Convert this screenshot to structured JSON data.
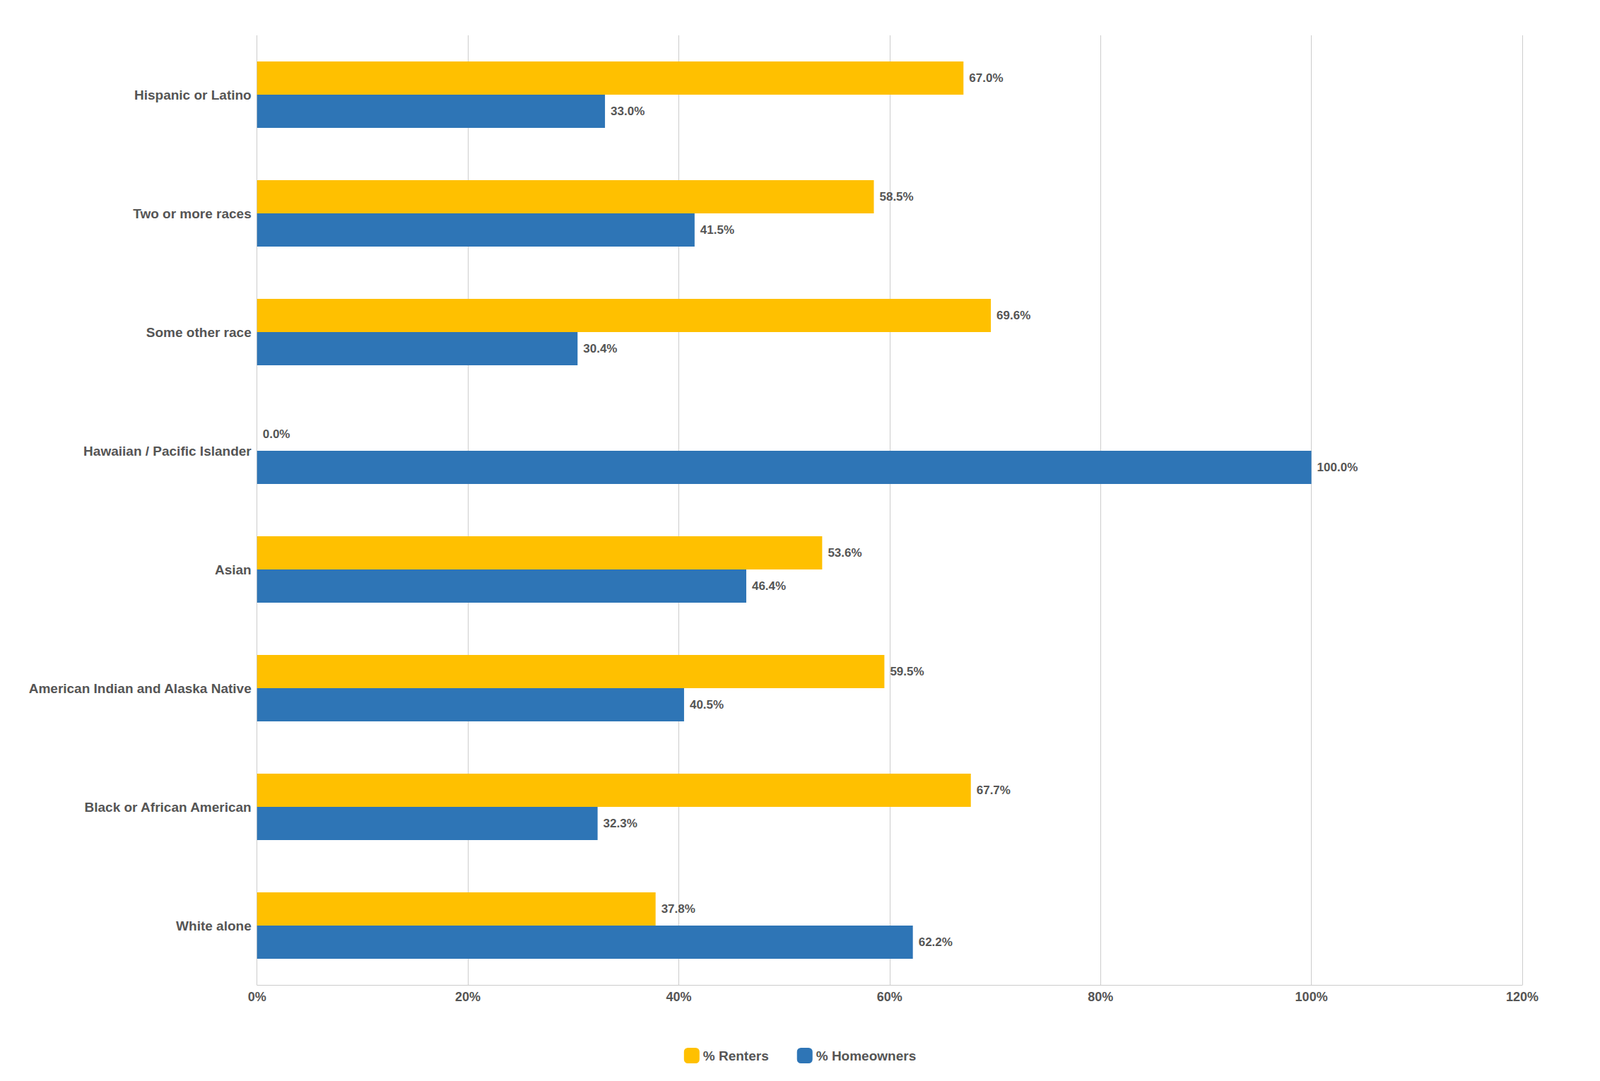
{
  "chart_data": {
    "type": "bar",
    "orientation": "horizontal",
    "categories": [
      "White alone",
      "Black or African American",
      "American Indian and Alaska Native",
      "Asian",
      "Hawaiian / Pacific Islander",
      "Some other race",
      "Two or more races",
      "Hispanic or Latino"
    ],
    "series": [
      {
        "name": "% Renters",
        "color": "#FFC000",
        "values": [
          37.8,
          67.7,
          59.5,
          53.6,
          0.0,
          69.6,
          58.5,
          67.0
        ],
        "value_labels": [
          "37.8%",
          "67.7%",
          "59.5%",
          "53.6%",
          "0.0%",
          "69.6%",
          "58.5%",
          "67.0%"
        ]
      },
      {
        "name": "% Homeowners",
        "color": "#2E75B6",
        "values": [
          62.2,
          32.3,
          40.5,
          46.4,
          100.0,
          30.4,
          41.5,
          33.0
        ],
        "value_labels": [
          "62.2%",
          "32.3%",
          "40.5%",
          "46.4%",
          "100.0%",
          "30.4%",
          "41.5%",
          "33.0%"
        ]
      }
    ],
    "xlim": [
      0,
      120
    ],
    "xticks": [
      {
        "value": 0,
        "label": "0%"
      },
      {
        "value": 20,
        "label": "20%"
      },
      {
        "value": 40,
        "label": "40%"
      },
      {
        "value": 60,
        "label": "60%"
      },
      {
        "value": 80,
        "label": "80%"
      },
      {
        "value": 100,
        "label": "100%"
      },
      {
        "value": 120,
        "label": "120%"
      }
    ],
    "grid": true,
    "legend": "bottom",
    "data_labels": true
  }
}
